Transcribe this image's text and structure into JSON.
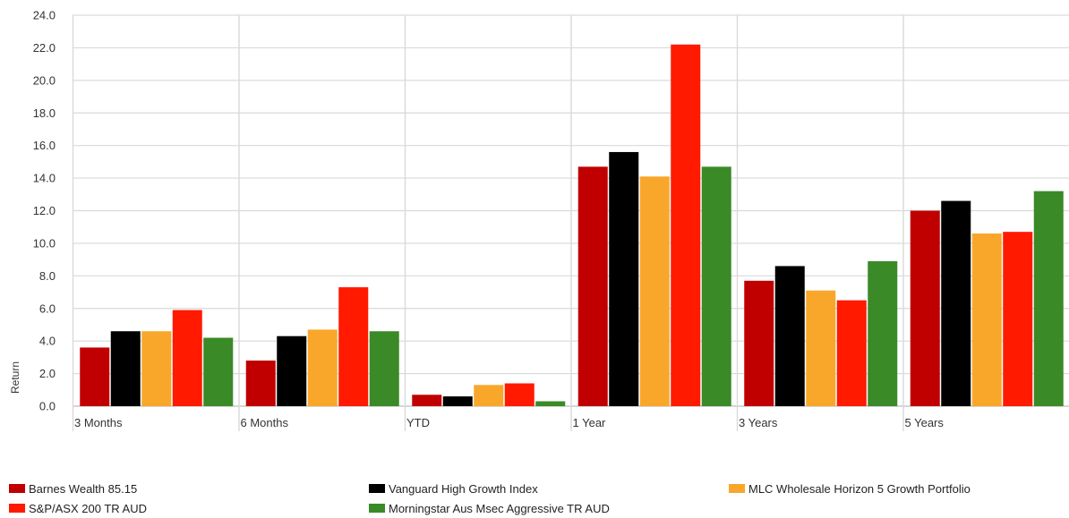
{
  "chart_data": {
    "type": "bar",
    "ylabel": "Return",
    "xlabel": "",
    "ylim": [
      0,
      24
    ],
    "ytick_step": 2,
    "ytick_labels": [
      "0.0",
      "2.0",
      "4.0",
      "6.0",
      "8.0",
      "10.0",
      "12.0",
      "14.0",
      "16.0",
      "18.0",
      "20.0",
      "22.0",
      "24.0"
    ],
    "grid": true,
    "legend_position": "bottom",
    "categories": [
      "3 Months",
      "6 Months",
      "YTD",
      "1 Year",
      "3 Years",
      "5 Years"
    ],
    "series": [
      {
        "name": "Barnes Wealth 85.15",
        "color": "#c00000",
        "values": [
          3.6,
          2.8,
          0.7,
          14.7,
          7.7,
          12.0
        ]
      },
      {
        "name": "Vanguard High Growth Index",
        "color": "#000000",
        "values": [
          4.6,
          4.3,
          0.6,
          15.6,
          8.6,
          12.6
        ]
      },
      {
        "name": "MLC Wholesale Horizon 5 Growth Portfolio",
        "color": "#f9a72b",
        "values": [
          4.6,
          4.7,
          1.3,
          14.1,
          7.1,
          10.6
        ]
      },
      {
        "name": "S&P/ASX 200 TR AUD",
        "color": "#ff1a00",
        "values": [
          5.9,
          7.3,
          1.4,
          22.2,
          6.5,
          10.7
        ]
      },
      {
        "name": "Morningstar Aus Msec Aggressive TR AUD",
        "color": "#3a8a27",
        "values": [
          4.2,
          4.6,
          0.3,
          14.7,
          8.9,
          13.2
        ]
      }
    ]
  }
}
